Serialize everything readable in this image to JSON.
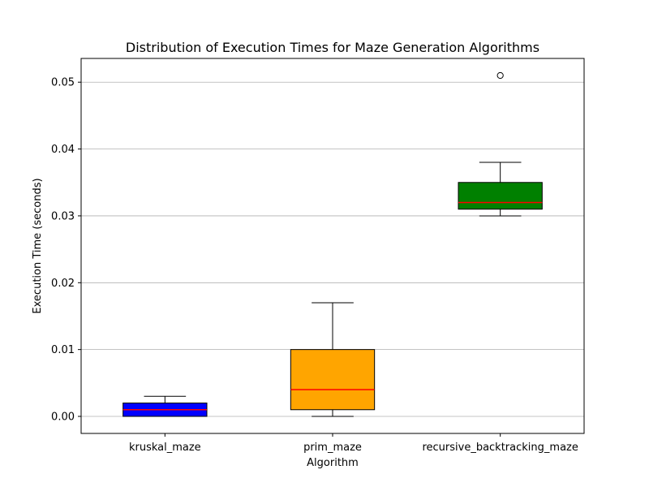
{
  "chart_data": {
    "type": "box",
    "title": "Distribution of Execution Times for Maze Generation Algorithms",
    "xlabel": "Algorithm",
    "ylabel": "Execution Time (seconds)",
    "ylim": [
      -0.00255,
      0.05355
    ],
    "yticks": [
      0.0,
      0.01,
      0.02,
      0.03,
      0.04,
      0.05
    ],
    "ytick_labels": [
      "0.00",
      "0.01",
      "0.02",
      "0.03",
      "0.04",
      "0.05"
    ],
    "grid": "horizontal",
    "median_color": "#ff0000",
    "boxes": [
      {
        "name": "kruskal_maze",
        "color": "#0000ff",
        "whisker_low": 0.0,
        "q1": 0.0,
        "median": 0.001,
        "q3": 0.002,
        "whisker_high": 0.003,
        "outliers": []
      },
      {
        "name": "prim_maze",
        "color": "#ffa500",
        "whisker_low": 0.0,
        "q1": 0.001,
        "median": 0.004,
        "q3": 0.01,
        "whisker_high": 0.017,
        "outliers": []
      },
      {
        "name": "recursive_backtracking_maze",
        "color": "#008000",
        "whisker_low": 0.03,
        "q1": 0.031,
        "median": 0.032,
        "q3": 0.035,
        "whisker_high": 0.038,
        "outliers": [
          0.051
        ]
      }
    ]
  }
}
